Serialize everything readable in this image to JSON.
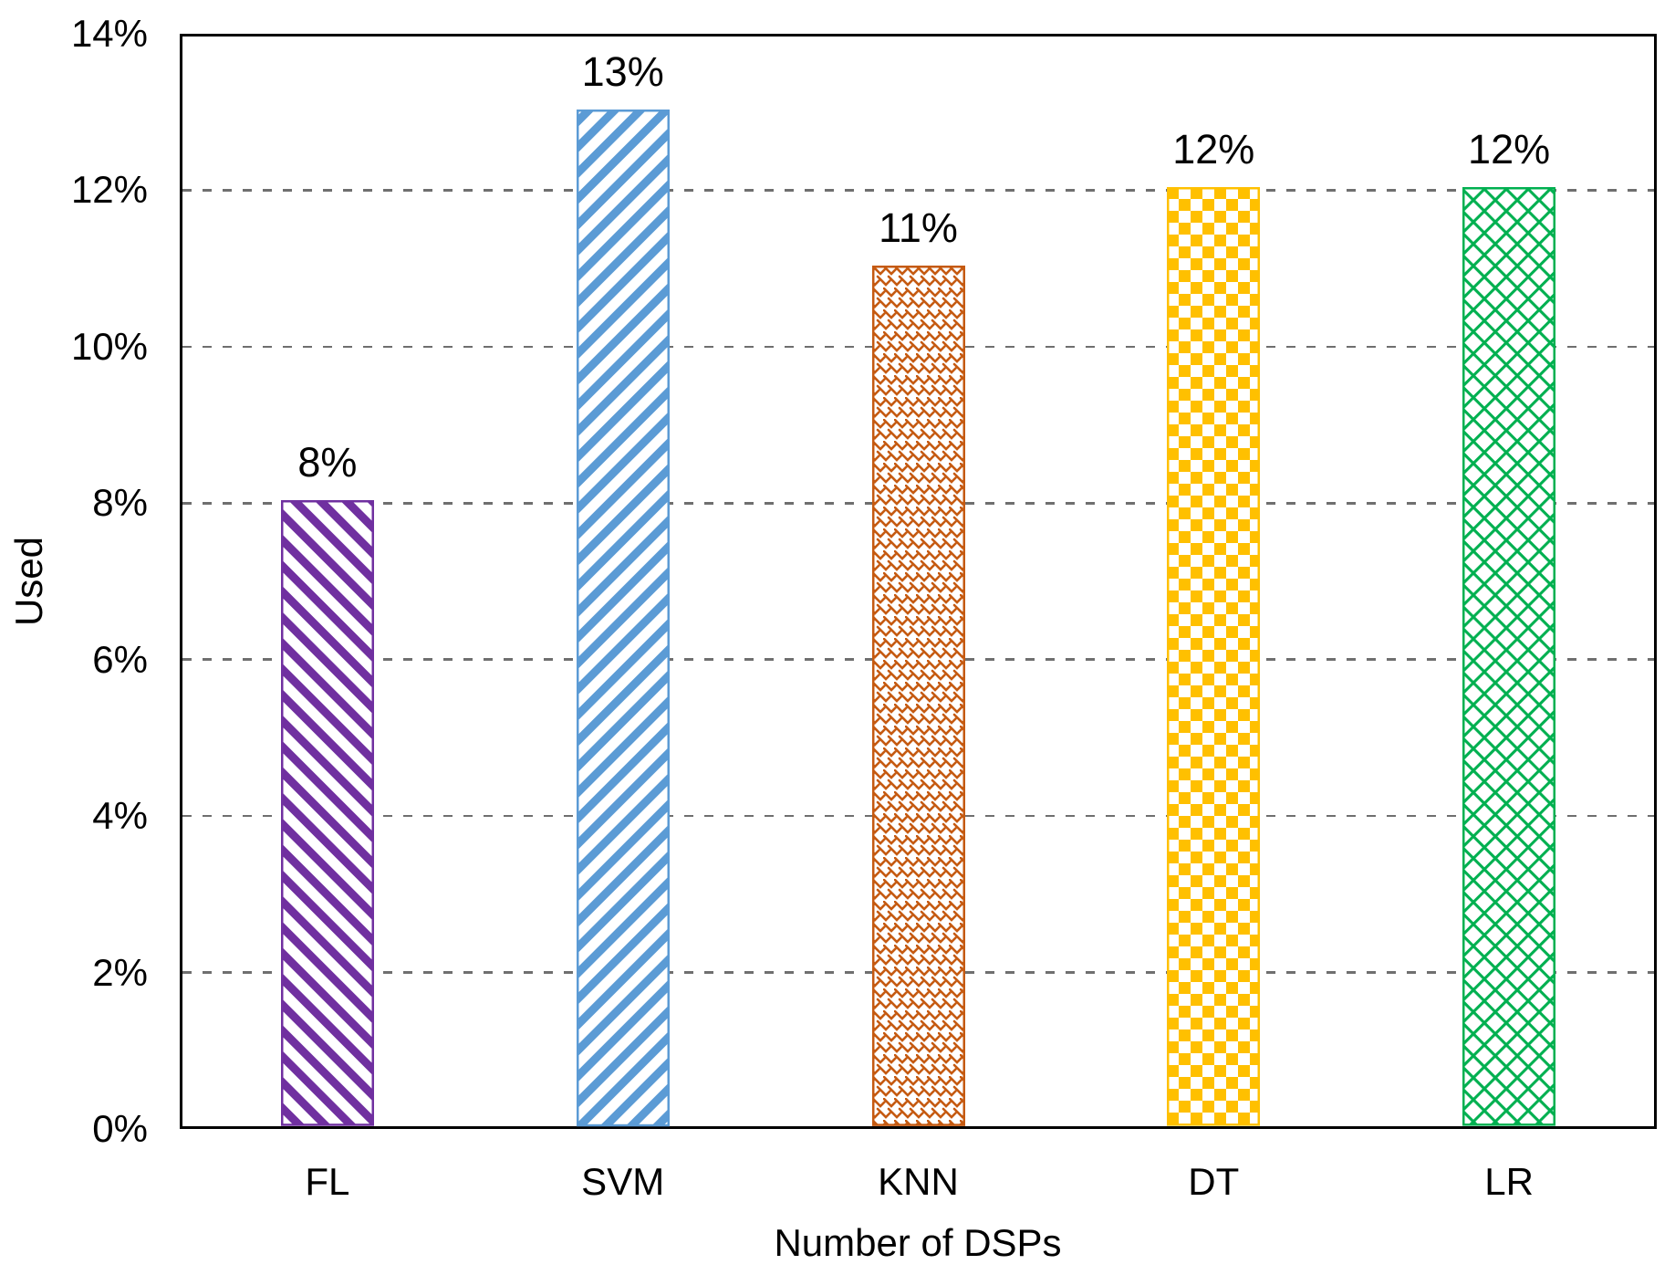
{
  "chart_data": {
    "type": "bar",
    "title": "",
    "categories": [
      "FL",
      "SVM",
      "KNN",
      "DT",
      "LR"
    ],
    "values": [
      8,
      13,
      11,
      12,
      12
    ],
    "value_labels": [
      "8%",
      "13%",
      "11%",
      "12%",
      "12%"
    ],
    "xlabel": "Number of DSPs",
    "ylabel": "Used",
    "ylim": [
      0,
      14
    ],
    "ytick_step": 2,
    "ytick_labels": [
      "0%",
      "2%",
      "4%",
      "6%",
      "8%",
      "10%",
      "12%",
      "14%"
    ],
    "grid": "horizontal-dashed",
    "legend": "none",
    "bar_styles": [
      {
        "category": "FL",
        "color": "#7030A0",
        "pattern": "diagonal-stripes-down"
      },
      {
        "category": "SVM",
        "color": "#5B9BD5",
        "pattern": "diagonal-stripes-up"
      },
      {
        "category": "KNN",
        "color": "#C55A11",
        "pattern": "shingle-weave"
      },
      {
        "category": "DT",
        "color": "#FFC000",
        "pattern": "checkerboard"
      },
      {
        "category": "LR",
        "color": "#00B050",
        "pattern": "diamond-lattice"
      }
    ],
    "colors": {
      "gridline": "#6F6F6F",
      "axis_border": "#000000",
      "text": "#000000",
      "background": "#FFFFFF"
    }
  }
}
